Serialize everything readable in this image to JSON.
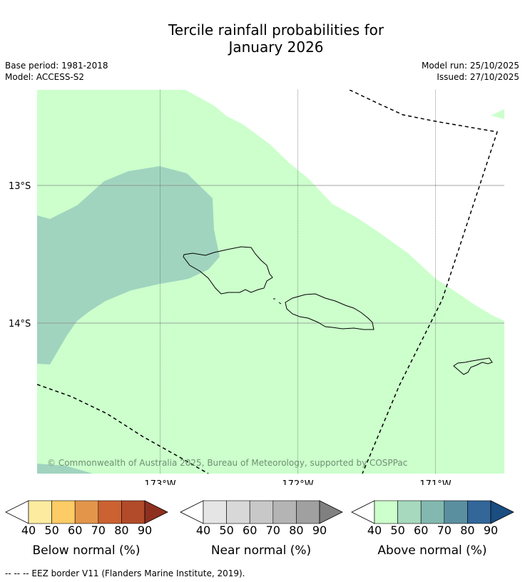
{
  "title": "Tercile rainfall probabilities for January 2026",
  "title_line1": "Tercile rainfall probabilities for",
  "title_line2": "January 2026",
  "base_period": "Base period: 1981-2018",
  "model": "Model: ACCESS-S2",
  "model_run": "Model run: 25/10/2025",
  "issued": "Issued: 27/10/2025",
  "copyright": "© Commonwealth of Australia 2025, Bureau of Meteorology, supported by COSPPac",
  "lat_labels": [
    "13°S",
    "14°S"
  ],
  "lon_labels": [
    "173°W",
    "172°W",
    "171°W"
  ],
  "colorbars": [
    {
      "label": "Below normal (%)",
      "ticks": [
        "40",
        "50",
        "60",
        "70",
        "80",
        "90"
      ],
      "colors": [
        "#ffffff",
        "#fdeca0",
        "#fdcc66",
        "#e3964a",
        "#cc6132",
        "#b14b2a",
        "#8e301f"
      ]
    },
    {
      "label": "Near normal (%)",
      "ticks": [
        "40",
        "50",
        "60",
        "70",
        "80",
        "90"
      ],
      "colors": [
        "#ffffff",
        "#e5e5e5",
        "#d8d8d8",
        "#c8c8c8",
        "#b4b4b4",
        "#a0a0a0",
        "#808080"
      ]
    },
    {
      "label": "Above normal (%)",
      "ticks": [
        "40",
        "50",
        "60",
        "70",
        "80",
        "90"
      ],
      "colors": [
        "#ffffff",
        "#ccffcc",
        "#a6d9bd",
        "#82b8b0",
        "#5a8fa0",
        "#336699",
        "#1a4d80"
      ]
    }
  ],
  "footer": "--  --  -- EEZ border V11 (Flanders Marine Institute, 2019).",
  "map_colors": {
    "above_40_50": "#ccffcc",
    "above_50_60": "#a0d4bf"
  }
}
